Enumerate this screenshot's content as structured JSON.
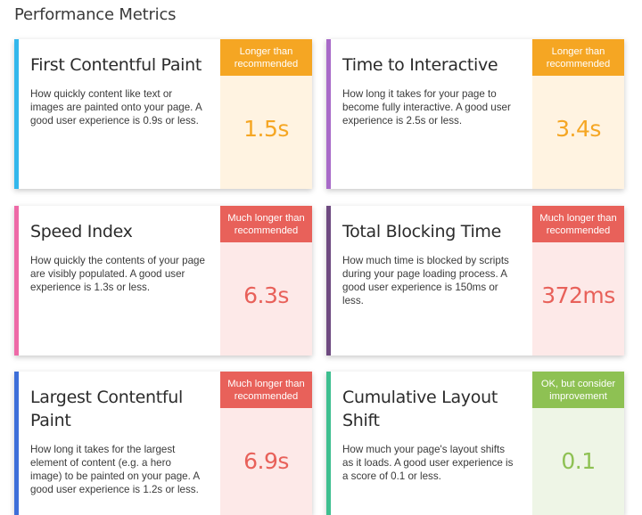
{
  "page": {
    "title": "Performance Metrics"
  },
  "colors": {
    "orange": "#f5a623",
    "orange_bg": "#fff3e1",
    "red": "#e8615a",
    "red_bg": "#fde9e8",
    "green": "#8ec153",
    "green_bg": "#eef5e6",
    "accent_blue": "#33b7ec",
    "accent_purple": "#a86ac8",
    "accent_pink": "#ee6aa7",
    "accent_darkpurple": "#6e4a80",
    "accent_darkblue": "#3d6fd9",
    "accent_teal": "#3ebf90"
  },
  "metrics": [
    {
      "title": "First Contentful Paint",
      "description": "How quickly content like text or images are painted onto your page. A good user experience is 0.9s or less.",
      "badge": "Longer than recommended",
      "value": "1.5s",
      "status": "orange",
      "accent": "accent_blue"
    },
    {
      "title": "Time to Interactive",
      "description": "How long it takes for your page to become fully interactive. A good user experience is 2.5s or less.",
      "badge": "Longer than recommended",
      "value": "3.4s",
      "status": "orange",
      "accent": "accent_purple"
    },
    {
      "title": "Speed Index",
      "description": "How quickly the contents of your page are visibly populated. A good user experience is 1.3s or less.",
      "badge": "Much longer than recommended",
      "value": "6.3s",
      "status": "red",
      "accent": "accent_pink"
    },
    {
      "title": "Total Blocking Time",
      "description": "How much time is blocked by scripts during your page loading process. A good user experience is 150ms or less.",
      "badge": "Much longer than recommended",
      "value": "372ms",
      "status": "red",
      "accent": "accent_darkpurple"
    },
    {
      "title": "Largest Contentful Paint",
      "description": "How long it takes for the largest element of content (e.g. a hero image) to be painted on your page. A good user experience is 1.2s or less.",
      "badge": "Much longer than recommended",
      "value": "6.9s",
      "status": "red",
      "accent": "accent_darkblue"
    },
    {
      "title": "Cumulative Layout Shift",
      "description": "How much your page's layout shifts as it loads. A good user experience is a score of 0.1 or less.",
      "badge": "OK, but consider improvement",
      "value": "0.1",
      "status": "green",
      "accent": "accent_teal"
    }
  ]
}
